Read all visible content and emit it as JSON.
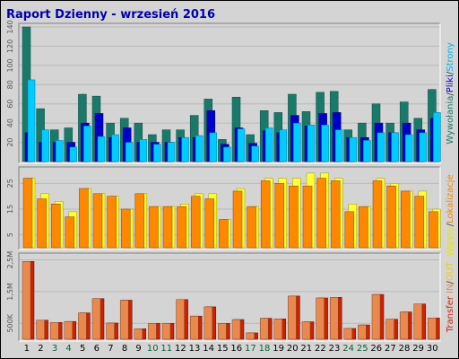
{
  "report": {
    "title": "Raport Dzienny -  wrzesień 2016"
  },
  "legend": {
    "top": [
      {
        "text": "Wywołania",
        "color": "#1a7a6a"
      },
      {
        "text": "/",
        "color": "#404040"
      },
      {
        "text": "Pliki",
        "color": "#0000cc"
      },
      {
        "text": "/",
        "color": "#404040"
      },
      {
        "text": "Strony",
        "color": "#00b4ee"
      }
    ],
    "middle": [
      {
        "text": "Wizyty",
        "color": "#e6e600"
      },
      {
        "text": "/",
        "color": "#404040"
      },
      {
        "text": "Lokalizacje",
        "color": "#ee8800"
      }
    ],
    "bottom": [
      {
        "text": "Transfer",
        "color": "#cc2200"
      },
      {
        "text": "IN",
        "color": "#e88a50"
      },
      {
        "text": "/",
        "color": "#404040"
      },
      {
        "text": "OUT",
        "color": "#e8d000"
      }
    ]
  },
  "colors": {
    "hits": "#1a7a6a",
    "files": "#0000cc",
    "pages": "#00ccff",
    "visits": "#ffff33",
    "sites": "#ff8800",
    "kbytes": "#cc2200",
    "kbytes_in": "#e88a50",
    "weekend_label": "#006633",
    "weekday_label": "#000000"
  },
  "chart_data": {
    "type": "bar",
    "categories": [
      "1",
      "2",
      "3",
      "4",
      "5",
      "6",
      "7",
      "8",
      "9",
      "10",
      "11",
      "12",
      "13",
      "14",
      "15",
      "16",
      "17",
      "18",
      "19",
      "20",
      "21",
      "22",
      "23",
      "24",
      "25",
      "26",
      "27",
      "28",
      "29",
      "30"
    ],
    "weekend_days": [
      "3",
      "4",
      "10",
      "11",
      "17",
      "18",
      "24",
      "25"
    ],
    "panels": [
      {
        "name": "hits-files-pages",
        "ylim": [
          0,
          140
        ],
        "y_ticks": [
          "20",
          "40",
          "60",
          "80",
          "100",
          "120",
          "140"
        ],
        "series": [
          {
            "name": "Wywołania",
            "values": [
              140,
              55,
              33,
              35,
              70,
              68,
              40,
              45,
              40,
              28,
              33,
              33,
              48,
              65,
              23,
              67,
              28,
              53,
              51,
              70,
              52,
              72,
              73,
              33,
              40,
              60,
              40,
              62,
              45,
              75
            ]
          },
          {
            "name": "Pliki",
            "values": [
              30,
              20,
              20,
              20,
              40,
              50,
              25,
              35,
              20,
              20,
              20,
              25,
              25,
              53,
              18,
              35,
              19,
              32,
              30,
              48,
              37,
              50,
              51,
              25,
              25,
              40,
              30,
              40,
              33,
              45
            ]
          },
          {
            "name": "Strony",
            "values": [
              85,
              33,
              22,
              15,
              37,
              26,
              28,
              20,
              23,
              18,
              20,
              25,
              27,
              30,
              15,
              34,
              16,
              35,
              33,
              40,
              38,
              38,
              33,
              25,
              22,
              30,
              30,
              28,
              30,
              51
            ]
          }
        ]
      },
      {
        "name": "visits-sites",
        "ylim": [
          0,
          30
        ],
        "y_ticks": [
          "5",
          "15",
          "25"
        ],
        "series": [
          {
            "name": "Wizyty",
            "values": [
              27,
              21,
              18,
              14,
              23,
              21,
              20,
              15,
              21,
              16,
              16,
              17,
              21,
              21,
              11,
              23,
              16,
              27,
              27,
              27,
              29,
              29,
              27,
              17,
              16,
              27,
              25,
              22,
              22,
              15
            ]
          },
          {
            "name": "Lokalizacje",
            "values": [
              27,
              19,
              17,
              12,
              23,
              21,
              20,
              15,
              21,
              16,
              16,
              16,
              20,
              19,
              11,
              22,
              16,
              26,
              25,
              24,
              24,
              27,
              26,
              14,
              16,
              26,
              24,
              22,
              20,
              14
            ]
          }
        ]
      },
      {
        "name": "transfer",
        "ylim": [
          0,
          2600
        ],
        "y_ticks": [
          "500K",
          "1,5M",
          "2,5M"
        ],
        "series": [
          {
            "name": "Transfer",
            "values": [
              2450,
              600,
              530,
              560,
              830,
              1280,
              510,
              1230,
              330,
              500,
              500,
              1250,
              730,
              1020,
              500,
              620,
              200,
              660,
              640,
              1360,
              550,
              1300,
              1320,
              340,
              450,
              1410,
              630,
              860,
              1110,
              670
            ]
          },
          {
            "name": "IN",
            "values": [
              2450,
              600,
              530,
              560,
              830,
              1280,
              510,
              1230,
              330,
              500,
              500,
              1250,
              730,
              1020,
              500,
              620,
              200,
              660,
              640,
              1360,
              550,
              1300,
              1320,
              340,
              450,
              1410,
              630,
              860,
              1110,
              670
            ]
          }
        ]
      }
    ]
  }
}
